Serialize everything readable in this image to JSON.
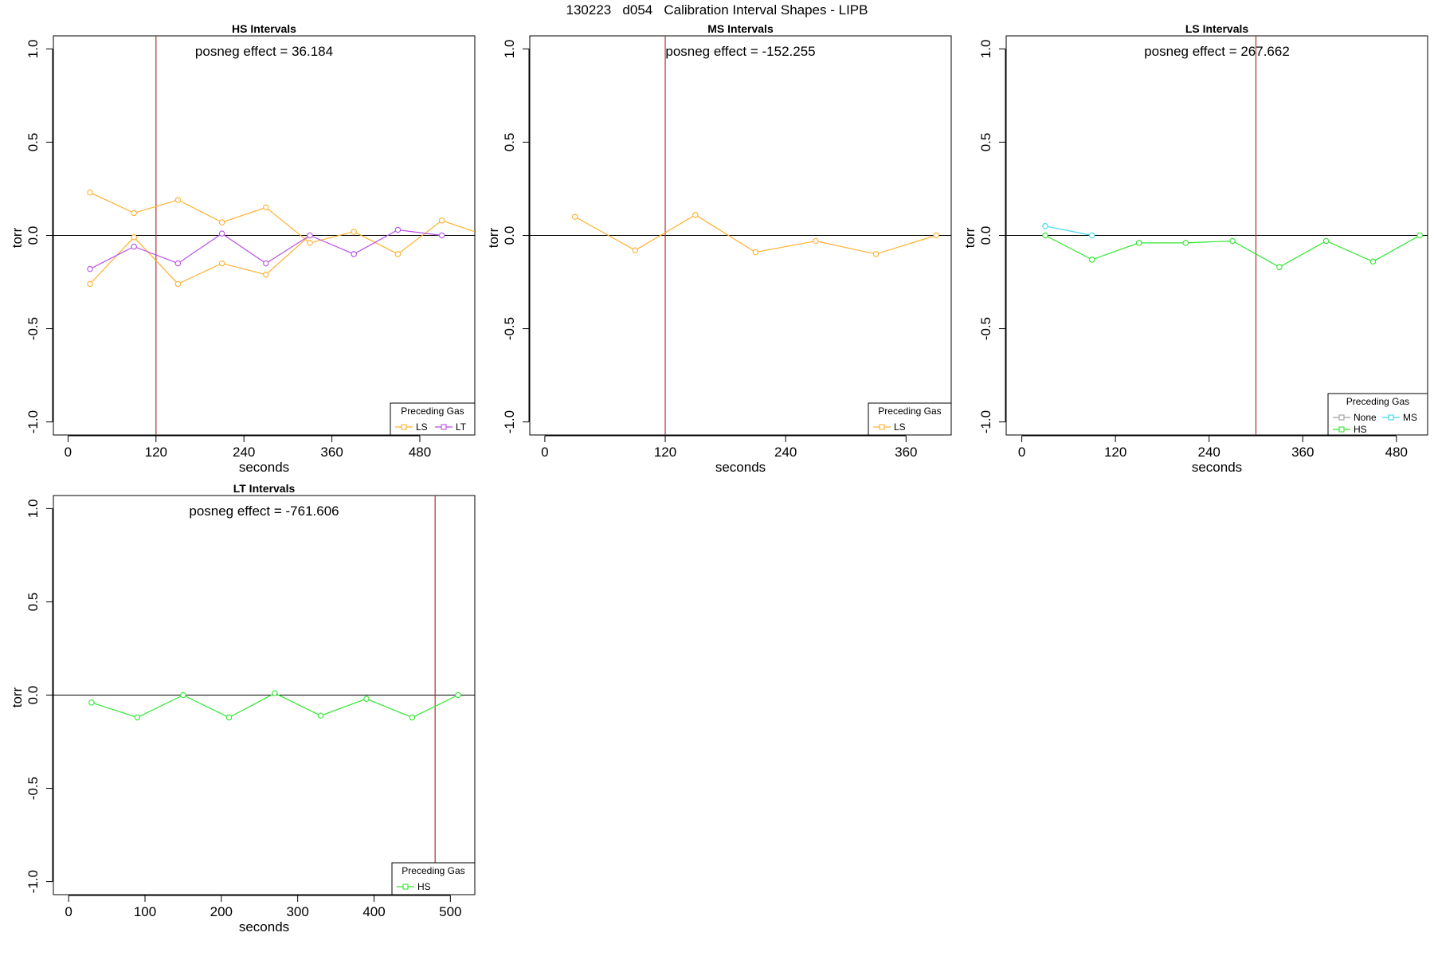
{
  "page_title": "130223   d054   Calibration Interval Shapes - LIPB",
  "colors": {
    "LS": "#FFB02E",
    "LT": "#B94FE8",
    "HS": "#2EE82E",
    "MS": "#3ED8F0",
    "None": "#A0A0A0",
    "vline": "#B03030",
    "zero_line": "#000000"
  },
  "chart_data": [
    {
      "type": "line",
      "title": "HS Intervals",
      "xlabel": "seconds",
      "ylabel": "torr",
      "xlim": [
        -20,
        555
      ],
      "ylim": [
        -1.07,
        1.07
      ],
      "xticks": [
        0,
        120,
        240,
        360,
        480
      ],
      "xtick_labels": [
        "0",
        "120",
        "240",
        "360",
        "480"
      ],
      "yticks": [
        -1.0,
        -0.5,
        0.0,
        0.5,
        1.0
      ],
      "ytick_labels": [
        "-1.0",
        "-0.5",
        "0.0",
        "0.5",
        "1.0"
      ],
      "annotation": "posneg effect = 36.184",
      "vline_x": 120,
      "zero_line": true,
      "grid": false,
      "legend": {
        "title": "Preceding Gas",
        "position": "bottom-right",
        "entries": [
          "LS",
          "LT"
        ]
      },
      "series": [
        {
          "name": "LS",
          "color_key": "LS",
          "x": [
            30,
            90,
            150,
            210,
            270,
            330,
            390,
            450,
            510,
            570
          ],
          "y": [
            0.23,
            0.12,
            0.19,
            0.07,
            0.15,
            -0.04,
            0.02,
            -0.1,
            0.08,
            0.0
          ]
        },
        {
          "name": "LS",
          "color_key": "LS",
          "x": [
            30,
            90,
            150,
            210,
            270,
            330
          ],
          "y": [
            -0.26,
            -0.01,
            -0.26,
            -0.15,
            -0.21,
            0.0
          ]
        },
        {
          "name": "LT",
          "color_key": "LT",
          "x": [
            30,
            90,
            150,
            210,
            270,
            330,
            390,
            450,
            510
          ],
          "y": [
            -0.18,
            -0.06,
            -0.15,
            0.01,
            -0.15,
            0.0,
            -0.1,
            0.03,
            0.0
          ]
        }
      ]
    },
    {
      "type": "line",
      "title": "MS Intervals",
      "xlabel": "seconds",
      "ylabel": "torr",
      "xlim": [
        -15,
        405
      ],
      "ylim": [
        -1.07,
        1.07
      ],
      "xticks": [
        0,
        120,
        240,
        360
      ],
      "xtick_labels": [
        "0",
        "120",
        "240",
        "360"
      ],
      "yticks": [
        -1.0,
        -0.5,
        0.0,
        0.5,
        1.0
      ],
      "ytick_labels": [
        "-1.0",
        "-0.5",
        "0.0",
        "0.5",
        "1.0"
      ],
      "annotation": "posneg effect = -152.255",
      "vline_x": 120,
      "zero_line": true,
      "grid": false,
      "legend": {
        "title": "Preceding Gas",
        "position": "bottom-right",
        "entries": [
          "LS"
        ]
      },
      "series": [
        {
          "name": "LS",
          "color_key": "LS",
          "x": [
            30,
            90,
            150,
            210,
            270,
            330,
            390
          ],
          "y": [
            0.1,
            -0.08,
            0.11,
            -0.09,
            -0.03,
            -0.1,
            0.0
          ]
        }
      ]
    },
    {
      "type": "line",
      "title": "LS Intervals",
      "xlabel": "seconds",
      "ylabel": "torr",
      "xlim": [
        -20,
        520
      ],
      "ylim": [
        -1.07,
        1.07
      ],
      "xticks": [
        0,
        120,
        240,
        360,
        480
      ],
      "xtick_labels": [
        "0",
        "120",
        "240",
        "360",
        "480"
      ],
      "yticks": [
        -1.0,
        -0.5,
        0.0,
        0.5,
        1.0
      ],
      "ytick_labels": [
        "-1.0",
        "-0.5",
        "0.0",
        "0.5",
        "1.0"
      ],
      "annotation": "posneg effect = 267.662",
      "vline_x": 300,
      "zero_line": true,
      "grid": false,
      "legend": {
        "title": "Preceding Gas",
        "position": "bottom-right",
        "entries": [
          "None",
          "MS",
          "HS"
        ]
      },
      "series": [
        {
          "name": "MS",
          "color_key": "MS",
          "x": [
            30,
            90
          ],
          "y": [
            0.05,
            0.0
          ]
        },
        {
          "name": "HS",
          "color_key": "HS",
          "x": [
            30,
            90,
            150,
            210,
            270,
            330,
            390,
            450,
            510
          ],
          "y": [
            0.0,
            -0.13,
            -0.04,
            -0.04,
            -0.03,
            -0.17,
            -0.03,
            -0.14,
            0.0
          ]
        }
      ]
    },
    {
      "type": "line",
      "title": "LT Intervals",
      "xlabel": "seconds",
      "ylabel": "torr",
      "xlim": [
        -20,
        532
      ],
      "ylim": [
        -1.07,
        1.07
      ],
      "xticks": [
        0,
        100,
        200,
        300,
        400,
        500
      ],
      "xtick_labels": [
        "0",
        "100",
        "200",
        "300",
        "400",
        "500"
      ],
      "yticks": [
        -1.0,
        -0.5,
        0.0,
        0.5,
        1.0
      ],
      "ytick_labels": [
        "-1.0",
        "-0.5",
        "0.0",
        "0.5",
        "1.0"
      ],
      "annotation": "posneg effect = -761.606",
      "vline_x": 480,
      "zero_line": true,
      "grid": false,
      "legend": {
        "title": "Preceding Gas",
        "position": "bottom-right",
        "entries": [
          "HS"
        ]
      },
      "series": [
        {
          "name": "HS",
          "color_key": "HS",
          "x": [
            30,
            90,
            150,
            210,
            270,
            330,
            390,
            450,
            510
          ],
          "y": [
            -0.04,
            -0.12,
            0.0,
            -0.12,
            0.01,
            -0.11,
            -0.02,
            -0.12,
            0.0
          ]
        }
      ]
    }
  ]
}
